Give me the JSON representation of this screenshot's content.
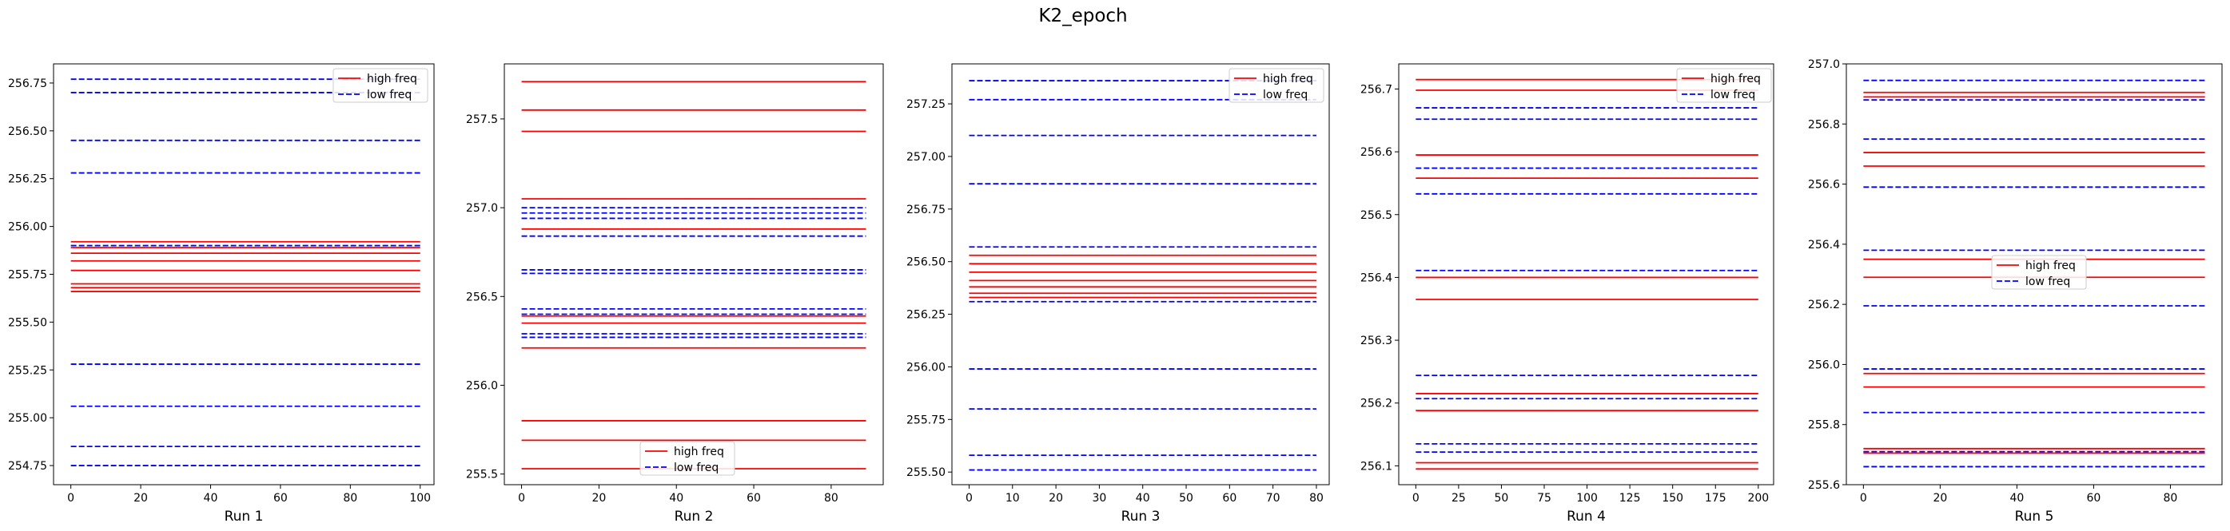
{
  "figure": {
    "suptitle": "K2_epoch"
  },
  "chart_data": [
    {
      "type": "line",
      "xlabel": "Run 1",
      "xlim": [
        -4.95,
        103.95
      ],
      "ylim": [
        254.65,
        256.85
      ],
      "xticks": [
        0,
        20,
        40,
        60,
        80,
        100
      ],
      "yticks": [
        254.75,
        255.0,
        255.25,
        255.5,
        255.75,
        256.0,
        256.25,
        256.5,
        256.75
      ],
      "ytick_labels": [
        "254.75",
        "255.00",
        "255.25",
        "255.50",
        "255.75",
        "256.00",
        "256.25",
        "256.50",
        "256.75"
      ],
      "x_range": [
        0,
        100
      ],
      "legend": {
        "loc": "top-right",
        "entries": [
          "high freq",
          "low freq"
        ]
      },
      "series": [
        {
          "name": "high freq",
          "color": "#ff0000",
          "style": "solid",
          "levels": [
            255.92,
            255.89,
            255.86,
            255.82,
            255.77,
            255.7,
            255.68,
            255.66
          ]
        },
        {
          "name": "low freq",
          "color": "#0000ff",
          "style": "dashed",
          "levels": [
            256.77,
            256.7,
            256.45,
            256.28,
            255.9,
            255.28,
            255.06,
            254.85,
            254.75
          ]
        }
      ]
    },
    {
      "type": "line",
      "xlabel": "Run 2",
      "xlim": [
        -4.45,
        93.45
      ],
      "ylim": [
        255.44,
        257.81
      ],
      "xticks": [
        0,
        20,
        40,
        60,
        80
      ],
      "yticks": [
        255.5,
        256.0,
        256.5,
        257.0,
        257.5
      ],
      "ytick_labels": [
        "255.5",
        "256.0",
        "256.5",
        "257.0",
        "257.5"
      ],
      "x_range": [
        0,
        89
      ],
      "legend": {
        "loc": "bottom-center",
        "entries": [
          "high freq",
          "low freq"
        ]
      },
      "series": [
        {
          "name": "high freq",
          "color": "#ff0000",
          "style": "solid",
          "levels": [
            257.71,
            257.55,
            257.43,
            257.05,
            256.88,
            256.39,
            256.35,
            256.21,
            255.8,
            255.69,
            255.53
          ]
        },
        {
          "name": "low freq",
          "color": "#0000ff",
          "style": "dashed",
          "levels": [
            257.0,
            256.97,
            256.94,
            256.84,
            256.65,
            256.63,
            256.43,
            256.4,
            256.29,
            256.27
          ]
        }
      ]
    },
    {
      "type": "line",
      "xlabel": "Run 3",
      "xlim": [
        -3.95,
        82.95
      ],
      "ylim": [
        255.44,
        257.44
      ],
      "xticks": [
        0,
        10,
        20,
        30,
        40,
        50,
        60,
        70,
        80
      ],
      "yticks": [
        255.5,
        255.75,
        256.0,
        256.25,
        256.5,
        256.75,
        257.0,
        257.25
      ],
      "ytick_labels": [
        "255.50",
        "255.75",
        "256.00",
        "256.25",
        "256.50",
        "256.75",
        "257.00",
        "257.25"
      ],
      "x_range": [
        0,
        80
      ],
      "legend": {
        "loc": "top-right",
        "entries": [
          "high freq",
          "low freq"
        ]
      },
      "series": [
        {
          "name": "high freq",
          "color": "#ff0000",
          "style": "solid",
          "levels": [
            256.53,
            256.49,
            256.45,
            256.41,
            256.38,
            256.35,
            256.33
          ]
        },
        {
          "name": "low freq",
          "color": "#0000ff",
          "style": "dashed",
          "levels": [
            257.36,
            257.27,
            257.1,
            256.87,
            256.57,
            256.31,
            255.99,
            255.8,
            255.58,
            255.51
          ]
        }
      ]
    },
    {
      "type": "line",
      "xlabel": "Run 4",
      "xlim": [
        -9.95,
        208.95
      ],
      "ylim": [
        256.07,
        256.74
      ],
      "xticks": [
        0,
        25,
        50,
        75,
        100,
        125,
        150,
        175,
        200
      ],
      "yticks": [
        256.1,
        256.2,
        256.3,
        256.4,
        256.5,
        256.6,
        256.7
      ],
      "ytick_labels": [
        "256.1",
        "256.2",
        "256.3",
        "256.4",
        "256.5",
        "256.6",
        "256.7"
      ],
      "x_range": [
        0,
        200
      ],
      "legend": {
        "loc": "top-right",
        "entries": [
          "high freq",
          "low freq"
        ]
      },
      "series": [
        {
          "name": "high freq",
          "color": "#ff0000",
          "style": "solid",
          "levels": [
            256.715,
            256.698,
            256.595,
            256.558,
            256.4,
            256.365,
            256.215,
            256.188,
            256.105,
            256.095
          ]
        },
        {
          "name": "low freq",
          "color": "#0000ff",
          "style": "dashed",
          "levels": [
            256.67,
            256.652,
            256.574,
            256.533,
            256.411,
            256.244,
            256.207,
            256.135,
            256.122
          ]
        }
      ]
    },
    {
      "type": "line",
      "xlabel": "Run 5",
      "xlim": [
        -4.45,
        93.45
      ],
      "ylim": [
        255.6,
        257.0
      ],
      "xticks": [
        0,
        20,
        40,
        60,
        80
      ],
      "yticks": [
        255.6,
        255.8,
        256.0,
        256.2,
        256.4,
        256.6,
        256.8,
        257.0
      ],
      "ytick_labels": [
        "255.6",
        "255.8",
        "256.0",
        "256.2",
        "256.4",
        "256.6",
        "256.8",
        "257.0"
      ],
      "x_range": [
        0,
        89
      ],
      "legend": {
        "loc": "center",
        "entries": [
          "high freq",
          "low freq"
        ]
      },
      "series": [
        {
          "name": "high freq",
          "color": "#ff0000",
          "style": "solid",
          "levels": [
            256.905,
            256.89,
            256.705,
            256.66,
            256.35,
            256.29,
            255.97,
            255.925,
            255.72,
            255.705
          ]
        },
        {
          "name": "low freq",
          "color": "#0000ff",
          "style": "dashed",
          "levels": [
            256.945,
            256.88,
            256.75,
            256.59,
            256.38,
            256.195,
            255.985,
            255.84,
            255.71,
            255.66
          ]
        }
      ]
    }
  ]
}
